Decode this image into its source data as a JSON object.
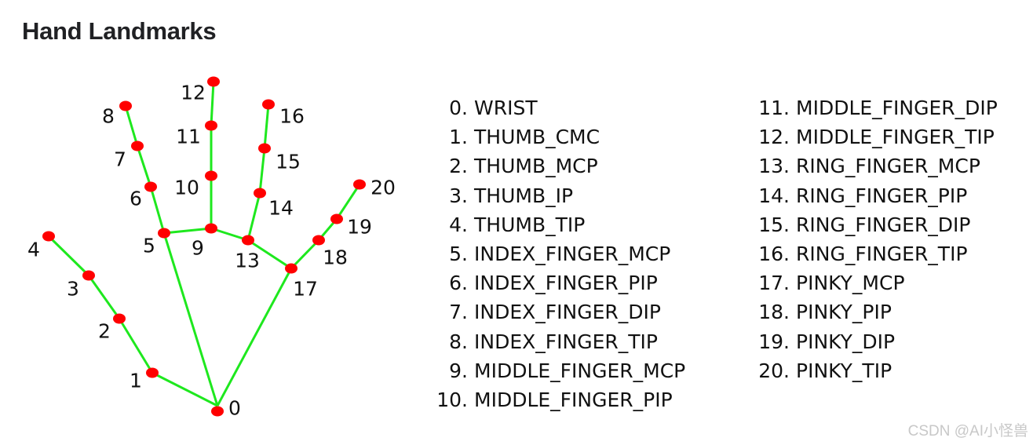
{
  "title": "Hand Landmarks",
  "colors": {
    "point": "#ff0000",
    "connection": "#1ee81e"
  },
  "landmarks": [
    {
      "id": "0",
      "name": "WRIST"
    },
    {
      "id": "1",
      "name": "THUMB_CMC"
    },
    {
      "id": "2",
      "name": "THUMB_MCP"
    },
    {
      "id": "3",
      "name": "THUMB_IP"
    },
    {
      "id": "4",
      "name": "THUMB_TIP"
    },
    {
      "id": "5",
      "name": "INDEX_FINGER_MCP"
    },
    {
      "id": "6",
      "name": "INDEX_FINGER_PIP"
    },
    {
      "id": "7",
      "name": "INDEX_FINGER_DIP"
    },
    {
      "id": "8",
      "name": "INDEX_FINGER_TIP"
    },
    {
      "id": "9",
      "name": "MIDDLE_FINGER_MCP"
    },
    {
      "id": "10",
      "name": "MIDDLE_FINGER_PIP"
    },
    {
      "id": "11",
      "name": "MIDDLE_FINGER_DIP"
    },
    {
      "id": "12",
      "name": "MIDDLE_FINGER_TIP"
    },
    {
      "id": "13",
      "name": "RING_FINGER_MCP"
    },
    {
      "id": "14",
      "name": "RING_FINGER_PIP"
    },
    {
      "id": "15",
      "name": "RING_FINGER_DIP"
    },
    {
      "id": "16",
      "name": "RING_FINGER_TIP"
    },
    {
      "id": "17",
      "name": "PINKY_MCP"
    },
    {
      "id": "18",
      "name": "PINKY_PIP"
    },
    {
      "id": "19",
      "name": "PINKY_DIP"
    },
    {
      "id": "20",
      "name": "PINKY_TIP"
    }
  ],
  "connections": [
    [
      0,
      1
    ],
    [
      1,
      2
    ],
    [
      2,
      3
    ],
    [
      3,
      4
    ],
    [
      0,
      5
    ],
    [
      5,
      6
    ],
    [
      6,
      7
    ],
    [
      7,
      8
    ],
    [
      5,
      9
    ],
    [
      9,
      10
    ],
    [
      10,
      11
    ],
    [
      11,
      12
    ],
    [
      9,
      13
    ],
    [
      13,
      14
    ],
    [
      14,
      15
    ],
    [
      15,
      16
    ],
    [
      13,
      17
    ],
    [
      0,
      17
    ],
    [
      17,
      18
    ],
    [
      18,
      19
    ],
    [
      19,
      20
    ]
  ],
  "watermark": "CSDN @AI小怪兽"
}
